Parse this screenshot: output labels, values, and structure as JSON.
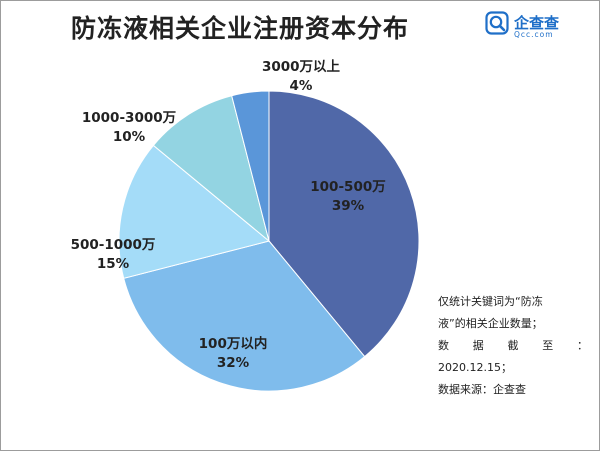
{
  "title": "防冻液相关企业注册资本分布",
  "logo": {
    "name": "企查查",
    "domain": "Qcc.com",
    "icon": "qcc-magnifier-logo-icon",
    "color": "#1f6fc8"
  },
  "chart_data": {
    "type": "pie",
    "title": "防冻液相关企业注册资本分布",
    "slices": [
      {
        "label": "100-500万",
        "value": 39,
        "display": "39%",
        "color": "#5068a8"
      },
      {
        "label": "100万以内",
        "value": 32,
        "display": "32%",
        "color": "#7fbcec"
      },
      {
        "label": "500-1000万",
        "value": 15,
        "display": "15%",
        "color": "#a4dcf8"
      },
      {
        "label": "1000-3000万",
        "value": 10,
        "display": "10%",
        "color": "#93d4e2"
      },
      {
        "label": "3000万以上",
        "value": 4,
        "display": "4%",
        "color": "#5a96d9"
      }
    ]
  },
  "note": [
    "仅统计关键词为“防冻",
    "液”的相关企业数量；",
    "数 据 截 至 ：",
    "2020.12.15；",
    "数据来源：企查查"
  ]
}
